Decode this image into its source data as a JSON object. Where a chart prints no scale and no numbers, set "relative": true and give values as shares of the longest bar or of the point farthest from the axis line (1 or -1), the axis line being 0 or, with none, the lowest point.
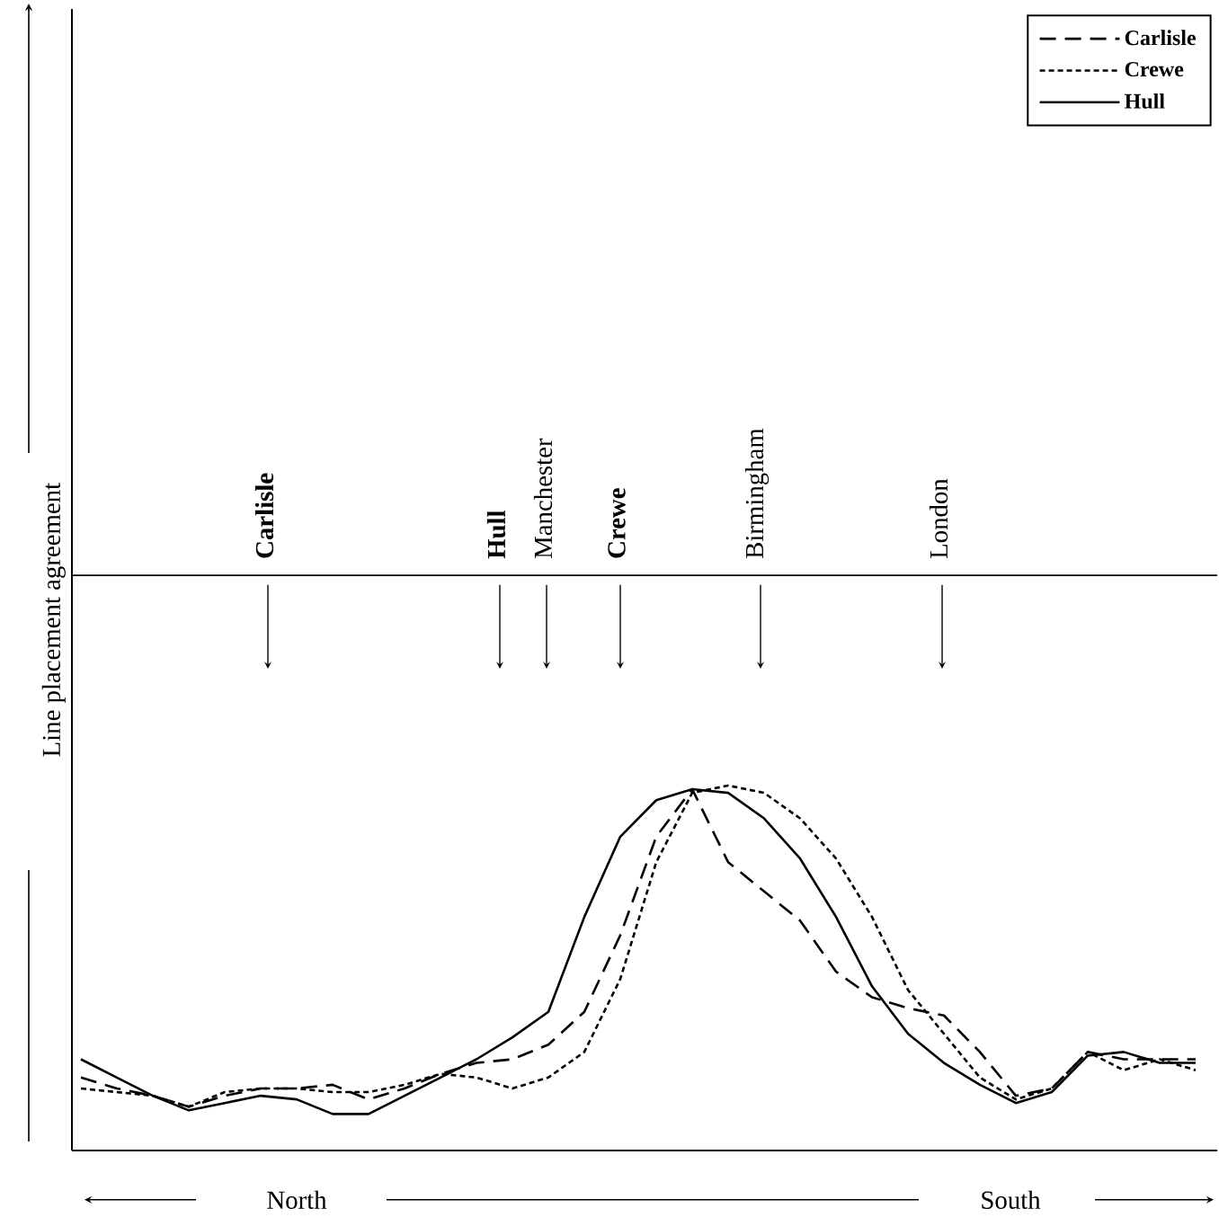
{
  "chart_data": {
    "type": "line",
    "relative": true,
    "ylabel": "Line placement agreement",
    "categories": [
      null,
      null,
      null,
      null,
      null,
      null,
      null,
      null,
      null,
      null,
      null,
      null,
      null,
      null,
      null,
      null,
      null,
      null,
      null,
      null,
      null,
      null,
      null,
      null,
      null,
      null,
      null,
      null,
      null,
      null,
      null,
      null
    ],
    "series": [
      {
        "name": "Carlisle",
        "color": "#000000",
        "line_style": "dashed",
        "values": [
          0.2,
          0.17,
          0.15,
          0.12,
          0.15,
          0.17,
          0.17,
          0.18,
          0.14,
          0.17,
          0.21,
          0.24,
          0.25,
          0.29,
          0.38,
          0.59,
          0.86,
          0.99,
          0.79,
          0.71,
          0.63,
          0.49,
          0.42,
          0.39,
          0.37,
          0.27,
          0.15,
          0.17,
          0.27,
          0.25,
          0.25,
          0.25
        ]
      },
      {
        "name": "Crewe",
        "color": "#000000",
        "line_style": "dotted",
        "values": [
          0.17,
          0.16,
          0.15,
          0.12,
          0.16,
          0.17,
          0.17,
          0.16,
          0.16,
          0.18,
          0.21,
          0.2,
          0.17,
          0.2,
          0.27,
          0.47,
          0.79,
          0.98,
          1.0,
          0.98,
          0.91,
          0.8,
          0.64,
          0.44,
          0.32,
          0.2,
          0.14,
          0.17,
          0.27,
          0.22,
          0.25,
          0.22
        ]
      },
      {
        "name": "Hull",
        "color": "#000000",
        "line_style": "solid",
        "values": [
          0.25,
          0.2,
          0.15,
          0.11,
          0.13,
          0.15,
          0.14,
          0.1,
          0.1,
          0.15,
          0.2,
          0.25,
          0.31,
          0.38,
          0.64,
          0.86,
          0.96,
          0.99,
          0.98,
          0.91,
          0.8,
          0.64,
          0.45,
          0.32,
          0.24,
          0.18,
          0.13,
          0.16,
          0.26,
          0.27,
          0.24,
          0.24
        ]
      }
    ],
    "legend": "top right",
    "annotations": [
      "**Carlisle**",
      "**Hull**",
      "Manchester",
      "**Crewe**",
      "Birmingham",
      "London",
      "North",
      "South"
    ]
  }
}
